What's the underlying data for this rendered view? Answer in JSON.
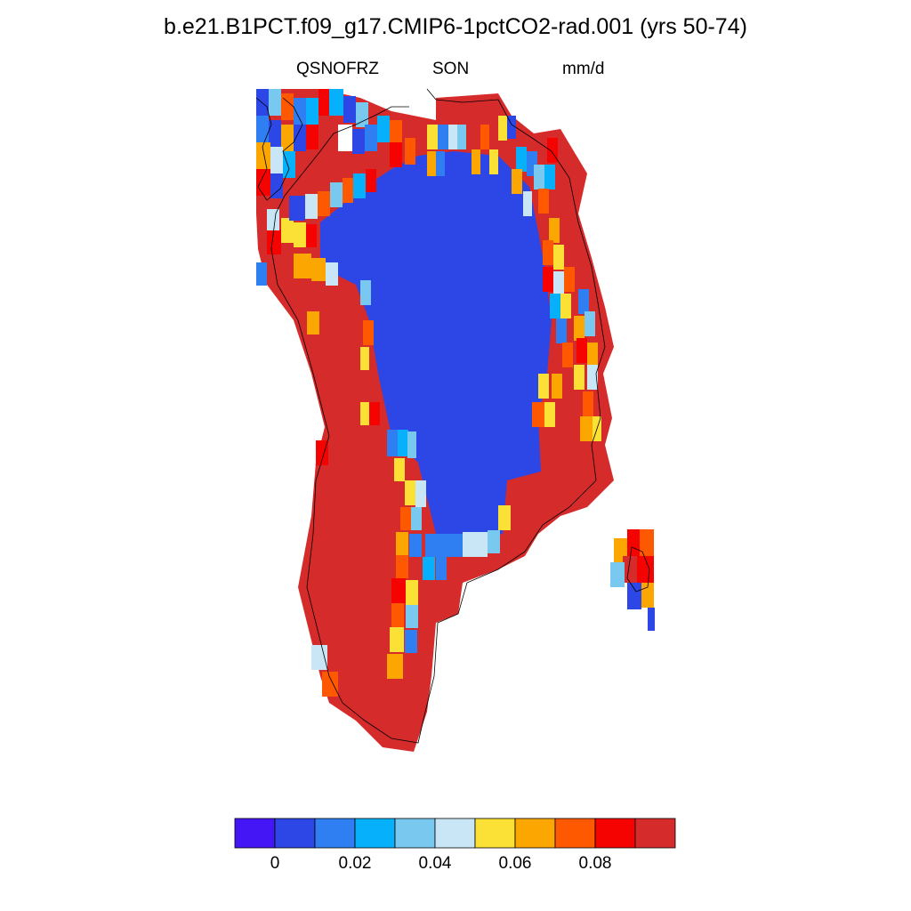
{
  "title": "b.e21.B1PCT.f09_g17.CMIP6-1pctCO2-rad.001 (yrs 50-74)",
  "variable": "QSNOFRZ",
  "season": "SON",
  "units": "mm/d",
  "colorbar": {
    "colors": [
      "#4516f5",
      "#2c47e5",
      "#2f7ff2",
      "#06b0fa",
      "#78c8f0",
      "#c9e6f6",
      "#fbe036",
      "#fca602",
      "#fe5800",
      "#f40301",
      "#d62b2b"
    ],
    "tick_labels": [
      "0",
      "0.02",
      "0.04",
      "0.06",
      "0.08"
    ]
  },
  "map": {
    "region": "Greenland",
    "interior_color": "#2c47e5",
    "coast_color": "#d62b2b"
  }
}
